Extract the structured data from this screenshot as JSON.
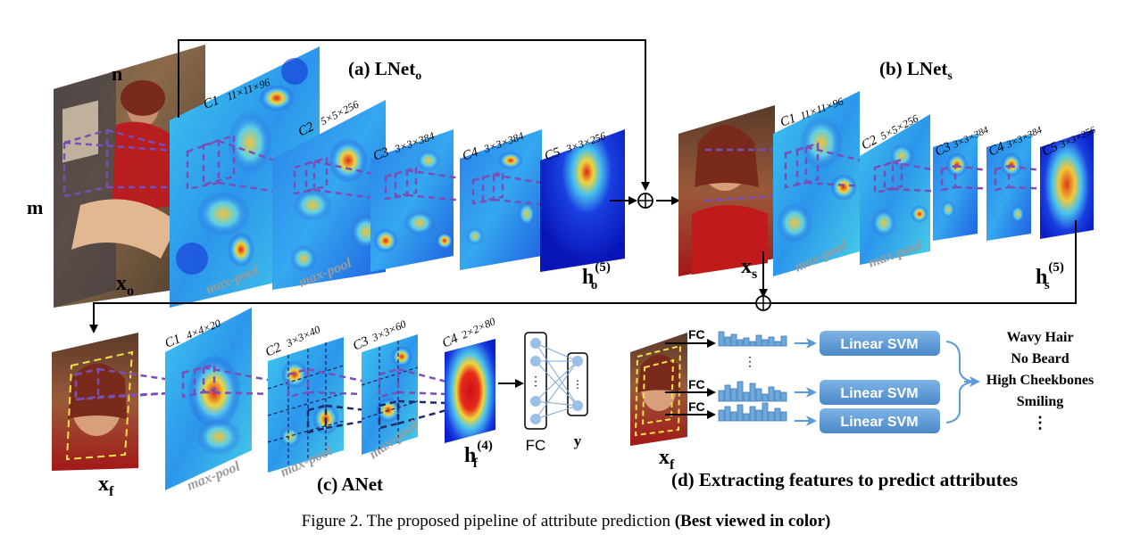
{
  "titles": {
    "lnet_o": "(a) LNet",
    "lnet_o_sub": "o",
    "lnet_s": "(b) LNet",
    "lnet_s_sub": "s",
    "anet": "(c) ANet",
    "extract": "(d) Extracting features to predict attributes"
  },
  "lnet_o_layers": [
    {
      "name": "C1",
      "dims": "11×11×96"
    },
    {
      "name": "C2",
      "dims": "5×5×256"
    },
    {
      "name": "C3",
      "dims": "3×3×384"
    },
    {
      "name": "C4",
      "dims": "3×3×384"
    },
    {
      "name": "C5",
      "dims": "3×3×256"
    }
  ],
  "lnet_s_layers": [
    {
      "name": "C1",
      "dims": "11×11×96"
    },
    {
      "name": "C2",
      "dims": "5×5×256"
    },
    {
      "name": "C3",
      "dims": "3×3×384"
    },
    {
      "name": "C4",
      "dims": "3×3×384"
    },
    {
      "name": "C5",
      "dims": "3×3×256"
    }
  ],
  "anet_layers": [
    {
      "name": "C1",
      "dims": "4×4×20"
    },
    {
      "name": "C2",
      "dims": "3×3×40"
    },
    {
      "name": "C3",
      "dims": "3×3×60"
    },
    {
      "name": "C4",
      "dims": "2×2×80"
    }
  ],
  "maxpool_label": "max-pool",
  "labels": {
    "n": "n",
    "m": "m",
    "x_o": "x",
    "x_o_sub": "o",
    "h_o": "h",
    "h_o_sub": "o",
    "h_o_sup": "(5)",
    "x_s": "x",
    "x_s_sub": "s",
    "h_s": "h",
    "h_s_sub": "s",
    "h_s_sup": "(5)",
    "x_f": "x",
    "x_f_sub": "f",
    "h_f": "h",
    "h_f_sub": "f",
    "h_f_sup": "(4)",
    "fc": "FC",
    "y": "y",
    "x_f2": "x",
    "x_f2_sub": "f"
  },
  "fc_labels": [
    "FC",
    "FC",
    "FC"
  ],
  "svm_label": "Linear SVM",
  "attributes": [
    "Wavy Hair",
    "No Beard",
    "High Cheekbones",
    "Smiling"
  ],
  "vertical_ellipsis": "⋮",
  "caption": {
    "prefix": "Figure 2.",
    "text": " The proposed pipeline of attribute prediction ",
    "bold": "(Best viewed in color)"
  },
  "colors": {
    "heat_low": "#0a1fcf",
    "heat_mid": "#3ab8f0",
    "heat_high": "#e8d43a",
    "heat_peak": "#d8261a",
    "dashed_purple": "#7a4fb5",
    "dashed_navy": "#1f2a6e",
    "svm_box": "#5b9bd5",
    "histogram": "#5b9bd5",
    "maxpool_text": "#9b9b9b",
    "face_box": "#f2e14a"
  }
}
